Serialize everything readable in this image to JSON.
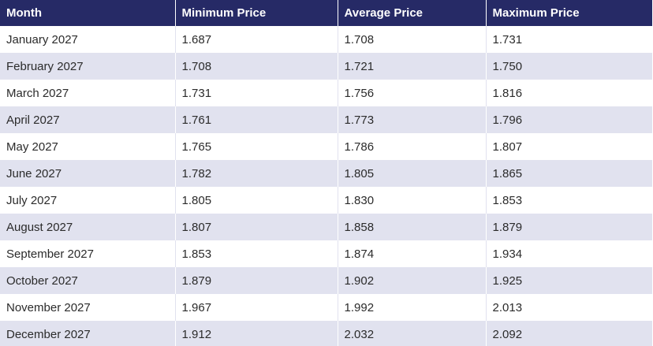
{
  "table": {
    "headers": [
      "Month",
      "Minimum Price",
      "Average Price",
      "Maximum Price"
    ],
    "rows": [
      [
        "January 2027",
        "1.687",
        "1.708",
        "1.731"
      ],
      [
        "February 2027",
        "1.708",
        "1.721",
        "1.750"
      ],
      [
        "March 2027",
        "1.731",
        "1.756",
        "1.816"
      ],
      [
        "April 2027",
        "1.761",
        "1.773",
        "1.796"
      ],
      [
        "May 2027",
        "1.765",
        "1.786",
        "1.807"
      ],
      [
        "June 2027",
        "1.782",
        "1.805",
        "1.865"
      ],
      [
        "July 2027",
        "1.805",
        "1.830",
        "1.853"
      ],
      [
        "August 2027",
        "1.807",
        "1.858",
        "1.879"
      ],
      [
        "September 2027",
        "1.853",
        "1.874",
        "1.934"
      ],
      [
        "October 2027",
        "1.879",
        "1.902",
        "1.925"
      ],
      [
        "November 2027",
        "1.967",
        "1.992",
        "2.013"
      ],
      [
        "December 2027",
        "1.912",
        "2.032",
        "2.092"
      ]
    ]
  },
  "colors": {
    "header_background": "#262a66",
    "header_text": "#ffffff",
    "row_stripe": "#e1e2ef"
  }
}
